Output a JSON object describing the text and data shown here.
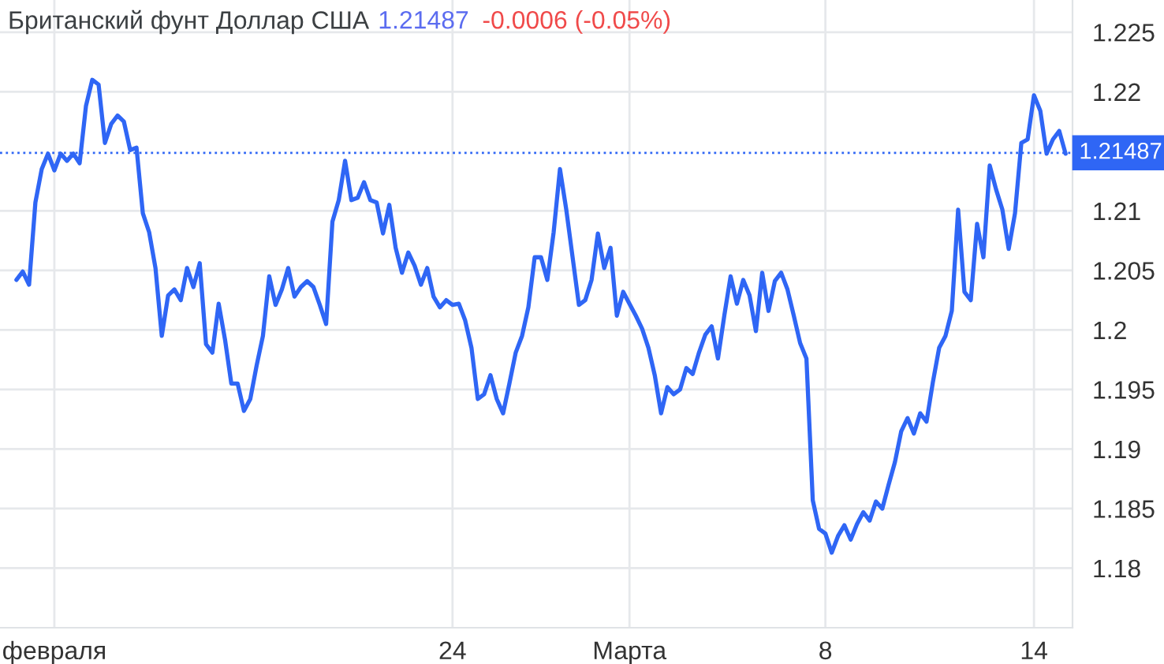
{
  "chart_data": {
    "type": "line",
    "title": "Британский фунт Доллар США",
    "subtitle": "1.21487",
    "annotations": [
      "-0.0006 (-0.05%)"
    ],
    "categories": [
      null,
      null,
      null,
      null,
      null,
      null,
      "февраля",
      null,
      null,
      null,
      null,
      null,
      null,
      null,
      null,
      null,
      null,
      null,
      null,
      null,
      null,
      null,
      null,
      null,
      null,
      null,
      null,
      null,
      null,
      null,
      null,
      null,
      null,
      null,
      null,
      null,
      null,
      null,
      null,
      null,
      null,
      null,
      null,
      null,
      null,
      null,
      null,
      null,
      null,
      null,
      null,
      null,
      null,
      null,
      null,
      null,
      null,
      null,
      null,
      null,
      null,
      null,
      null,
      null,
      null,
      null,
      null,
      null,
      null,
      "24",
      null,
      null,
      null,
      null,
      null,
      null,
      null,
      null,
      null,
      null,
      null,
      null,
      null,
      null,
      null,
      null,
      null,
      null,
      null,
      null,
      null,
      null,
      null,
      null,
      null,
      null,
      null,
      "Марта",
      null,
      null,
      null,
      null,
      null,
      null,
      null,
      null,
      null,
      null,
      null,
      null,
      null,
      null,
      null,
      null,
      null,
      null,
      null,
      null,
      null,
      null,
      null,
      null,
      null,
      null,
      null,
      null,
      null,
      null,
      "8",
      null,
      null,
      null,
      null,
      null,
      null,
      null,
      null,
      null,
      null,
      null,
      null,
      null,
      null,
      null,
      null,
      null,
      null,
      null,
      null,
      null,
      null,
      null,
      null,
      null,
      null,
      null,
      null,
      null,
      null,
      null,
      null,
      "14",
      null,
      null,
      null,
      null,
      null
    ],
    "series": [
      {
        "color": "#2f66f5",
        "values": [
          1.2042,
          1.2049,
          1.2038,
          1.2107,
          1.2135,
          1.2148,
          1.2134,
          1.2148,
          1.2142,
          1.2148,
          1.214,
          1.2188,
          1.221,
          1.2206,
          1.2157,
          1.2173,
          1.218,
          1.2175,
          1.2151,
          1.2153,
          1.2098,
          1.2082,
          1.2052,
          1.1995,
          1.2029,
          1.2034,
          1.2025,
          1.2052,
          1.2036,
          1.2056,
          1.1988,
          1.1981,
          1.2022,
          1.1992,
          1.1955,
          1.1955,
          1.1932,
          1.1942,
          1.197,
          1.1995,
          1.2045,
          1.2021,
          1.2034,
          1.2052,
          1.2028,
          1.2036,
          1.2041,
          1.2036,
          1.2021,
          1.2005,
          1.2091,
          1.2109,
          1.2142,
          1.2109,
          1.2111,
          1.2124,
          1.2109,
          1.2107,
          1.2081,
          1.2105,
          1.2069,
          1.2048,
          1.2065,
          1.2054,
          1.2038,
          1.2052,
          1.2028,
          1.2019,
          1.2025,
          1.2021,
          1.2022,
          1.2008,
          1.1985,
          1.1942,
          1.1946,
          1.1962,
          1.1942,
          1.193,
          1.1955,
          1.1981,
          1.1995,
          1.2019,
          1.2061,
          1.2061,
          1.2042,
          1.2082,
          1.2135,
          1.2101,
          1.2061,
          1.2021,
          1.2025,
          1.2042,
          1.2081,
          1.2052,
          1.2069,
          1.2012,
          1.2032,
          1.2022,
          1.2012,
          1.2001,
          1.1985,
          1.1962,
          1.193,
          1.1952,
          1.1946,
          1.195,
          1.1968,
          1.1963,
          1.1981,
          1.1996,
          1.2003,
          1.1976,
          1.2012,
          1.2045,
          1.2022,
          1.2042,
          1.2029,
          1.1999,
          1.2048,
          1.2016,
          1.2041,
          1.2048,
          1.2034,
          1.2012,
          1.1989,
          1.1976,
          1.1857,
          1.1833,
          1.1829,
          1.1813,
          1.1827,
          1.1836,
          1.1824,
          1.1837,
          1.1847,
          1.184,
          1.1856,
          1.185,
          1.187,
          1.1889,
          1.1915,
          1.1926,
          1.1913,
          1.193,
          1.1923,
          1.1956,
          1.1985,
          1.1995,
          1.2016,
          1.2101,
          1.2032,
          1.2025,
          1.2089,
          1.2061,
          1.2138,
          1.2118,
          1.2101,
          1.2068,
          1.2098,
          1.2157,
          1.216,
          1.2197,
          1.2184,
          1.2148,
          1.216,
          1.2167,
          1.2148
        ]
      }
    ],
    "ylim": [
      1.175,
      1.2277
    ],
    "yticks": [
      1.18,
      1.185,
      1.19,
      1.195,
      1.2,
      1.205,
      1.21,
      1.22,
      1.225
    ],
    "ref_lines": [
      {
        "axis": "y",
        "value": 1.21487,
        "label": "1.21487",
        "color": "#2f66f5",
        "line_style": "dotted"
      }
    ],
    "grid": true,
    "legend": false,
    "marker": "none",
    "line_style": "solid"
  }
}
